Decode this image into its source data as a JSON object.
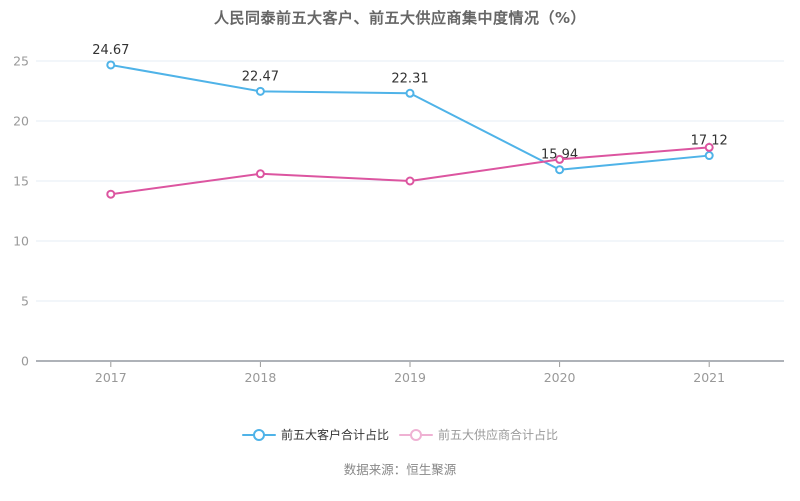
{
  "title": "人民同泰前五大客户、前五大供应商集中度情况（%）",
  "source_note": "数据来源：恒生聚源",
  "colors": {
    "customers_line": "#4FB3E8",
    "suppliers_line": "#DC55A0",
    "grid_line": "#E4ECF4",
    "axis_line": "#5E6470",
    "tick_label": "#999999",
    "data_label": "#333333",
    "title_text": "#666666"
  },
  "chart_data": {
    "type": "line",
    "categories": [
      "2017",
      "2018",
      "2019",
      "2020",
      "2021"
    ],
    "series": [
      {
        "name": "前五大客户合计占比",
        "values": [
          24.67,
          22.47,
          22.31,
          15.94,
          17.12
        ],
        "color": "#4FB3E8",
        "labeled": true
      },
      {
        "name": "前五大供应商合计占比",
        "values": [
          13.9,
          15.6,
          15.0,
          16.8,
          17.8
        ],
        "color": "#DC55A0",
        "labeled": false
      }
    ],
    "title": "人民同泰前五大客户、前五大供应商集中度情况（%）",
    "xlabel": "",
    "ylabel": "",
    "ylim": [
      0,
      25
    ],
    "ytick_step": 5,
    "grid": true,
    "legend_position": "bottom",
    "marker": "hollow-circle"
  },
  "legend": {
    "items": [
      {
        "label": "前五大客户合计占比",
        "color": "#4FB3E8",
        "text_color": "#333333",
        "dimmed": false
      },
      {
        "label": "前五大供应商合计占比",
        "color": "#DC55A0",
        "text_color": "#999999",
        "dimmed": true
      }
    ]
  }
}
